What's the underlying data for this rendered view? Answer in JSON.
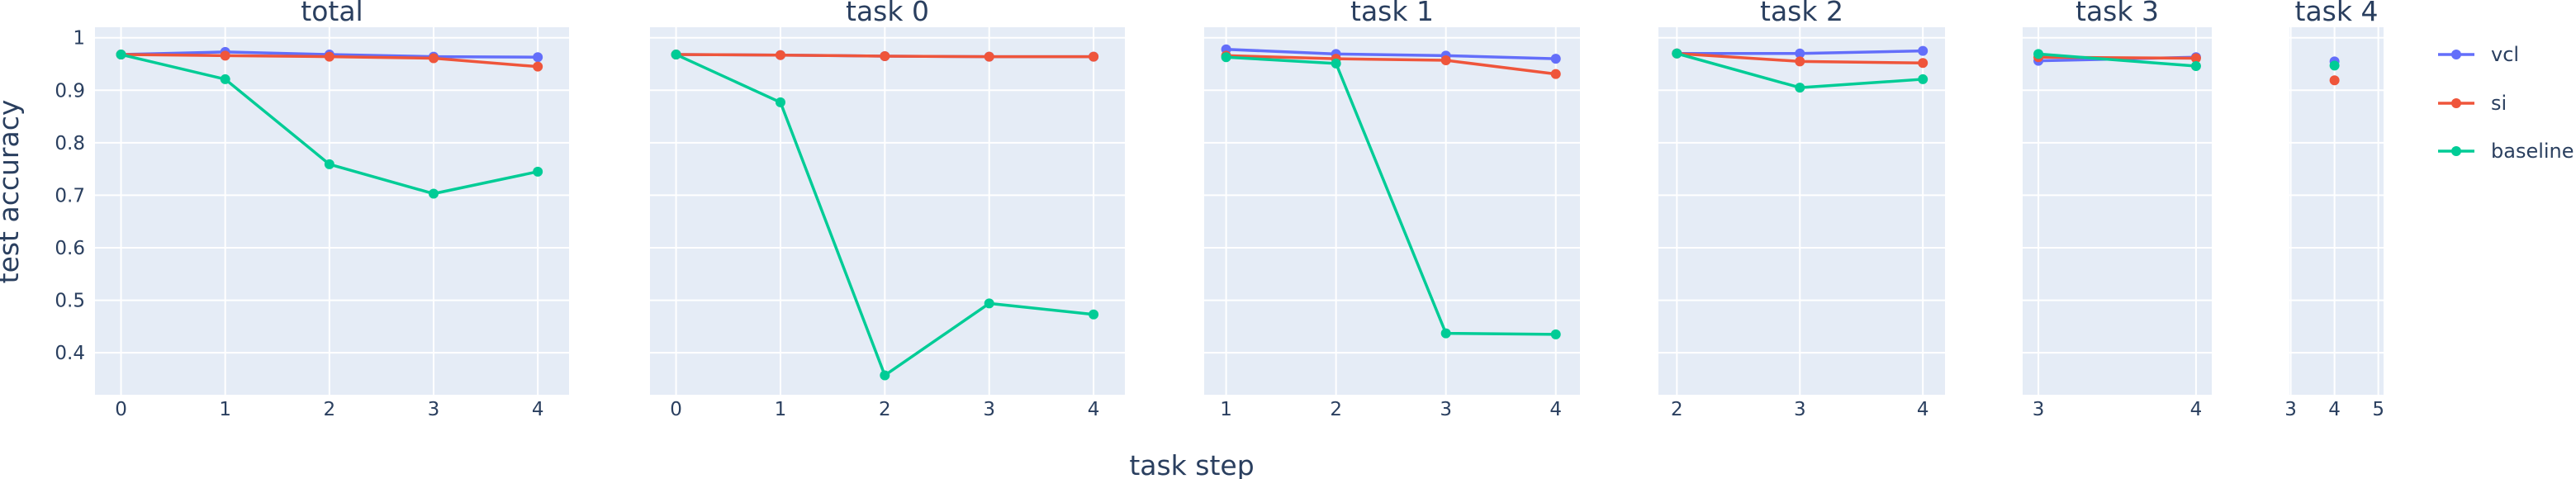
{
  "chart_data": {
    "type": "line",
    "xlabel": "task step",
    "ylabel": "test accuracy",
    "ylim": [
      0.32,
      1.02
    ],
    "yticks": [
      "0.4",
      "0.5",
      "0.6",
      "0.7",
      "0.8",
      "0.9",
      "1"
    ],
    "legend": {
      "placement": "right",
      "entries": [
        "vcl",
        "si",
        "baseline"
      ]
    },
    "colors": {
      "vcl": "#636efa",
      "si": "#ef553b",
      "baseline": "#00cc96",
      "panel_bg": "#e5ecf6",
      "text": "#2a3f5f"
    },
    "panels": [
      {
        "title": "total",
        "xticks": [
          "0",
          "1",
          "2",
          "3",
          "4"
        ],
        "xlim": [
          -0.25,
          4.3
        ],
        "series": [
          {
            "name": "vcl",
            "x": [
              0,
              1,
              2,
              3,
              4
            ],
            "y": [
              0.968,
              0.973,
              0.968,
              0.964,
              0.963
            ]
          },
          {
            "name": "si",
            "x": [
              0,
              1,
              2,
              3,
              4
            ],
            "y": [
              0.968,
              0.966,
              0.964,
              0.961,
              0.945
            ]
          },
          {
            "name": "baseline",
            "x": [
              0,
              1,
              2,
              3,
              4
            ],
            "y": [
              0.968,
              0.921,
              0.759,
              0.703,
              0.745
            ]
          }
        ]
      },
      {
        "title": "task 0",
        "xticks": [
          "0",
          "1",
          "2",
          "3",
          "4"
        ],
        "xlim": [
          -0.25,
          4.3
        ],
        "series": [
          {
            "name": "vcl",
            "x": [
              0,
              1,
              2,
              3,
              4
            ],
            "y": [
              0.968,
              0.967,
              0.965,
              0.964,
              0.964
            ]
          },
          {
            "name": "si",
            "x": [
              0,
              1,
              2,
              3,
              4
            ],
            "y": [
              0.968,
              0.967,
              0.965,
              0.964,
              0.964
            ]
          },
          {
            "name": "baseline",
            "x": [
              0,
              1,
              2,
              3,
              4
            ],
            "y": [
              0.968,
              0.877,
              0.357,
              0.494,
              0.473
            ]
          }
        ]
      },
      {
        "title": "task 1",
        "xticks": [
          "1",
          "2",
          "3",
          "4"
        ],
        "xlim": [
          0.8,
          4.22
        ],
        "series": [
          {
            "name": "vcl",
            "x": [
              1,
              2,
              3,
              4
            ],
            "y": [
              0.978,
              0.969,
              0.966,
              0.96
            ]
          },
          {
            "name": "si",
            "x": [
              1,
              2,
              3,
              4
            ],
            "y": [
              0.966,
              0.96,
              0.957,
              0.931
            ]
          },
          {
            "name": "baseline",
            "x": [
              1,
              2,
              3,
              4
            ],
            "y": [
              0.963,
              0.951,
              0.437,
              0.435
            ]
          }
        ]
      },
      {
        "title": "task 2",
        "xticks": [
          "2",
          "3",
          "4"
        ],
        "xlim": [
          1.85,
          4.18
        ],
        "series": [
          {
            "name": "vcl",
            "x": [
              2,
              3,
              4
            ],
            "y": [
              0.97,
              0.97,
              0.975
            ]
          },
          {
            "name": "si",
            "x": [
              2,
              3,
              4
            ],
            "y": [
              0.97,
              0.955,
              0.952
            ]
          },
          {
            "name": "baseline",
            "x": [
              2,
              3,
              4
            ],
            "y": [
              0.97,
              0.905,
              0.921
            ]
          }
        ]
      },
      {
        "title": "task 3",
        "xticks": [
          "3",
          "4"
        ],
        "xlim": [
          2.9,
          4.1
        ],
        "series": [
          {
            "name": "vcl",
            "x": [
              3,
              4
            ],
            "y": [
              0.956,
              0.963
            ]
          },
          {
            "name": "si",
            "x": [
              3,
              4
            ],
            "y": [
              0.963,
              0.961
            ]
          },
          {
            "name": "baseline",
            "x": [
              3,
              4
            ],
            "y": [
              0.969,
              0.946
            ]
          }
        ]
      },
      {
        "title": "task 4",
        "xticks": [
          "3",
          "4",
          "5"
        ],
        "xlim": [
          2.97,
          5.12
        ],
        "series": [
          {
            "name": "vcl",
            "x": [
              4
            ],
            "y": [
              0.955
            ]
          },
          {
            "name": "si",
            "x": [
              4
            ],
            "y": [
              0.919
            ]
          },
          {
            "name": "baseline",
            "x": [
              4
            ],
            "y": [
              0.947
            ]
          }
        ]
      }
    ]
  }
}
